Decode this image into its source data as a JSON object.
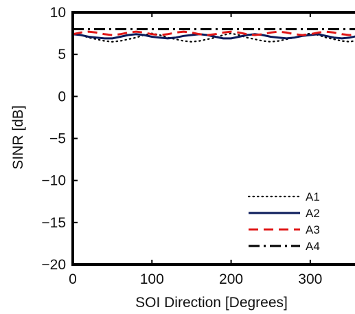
{
  "chart_data": {
    "type": "line",
    "title": "",
    "xlabel": "SOI Direction [Degrees]",
    "ylabel": "SINR [dB]",
    "xlim": [
      0,
      360
    ],
    "ylim": [
      -20,
      10
    ],
    "xticks": [
      0,
      100,
      200,
      300
    ],
    "yticks": [
      10,
      5,
      0,
      -5,
      -10,
      -15,
      -20
    ],
    "grid": false,
    "legend_position": "bottom-right",
    "series": [
      {
        "name": "A1",
        "color": "#000000",
        "style": "dotted",
        "x": [
          0,
          10,
          20,
          30,
          40,
          50,
          60,
          70,
          80,
          90,
          100,
          110,
          120,
          130,
          140,
          150,
          160,
          170,
          180,
          190,
          200,
          210,
          220,
          230,
          240,
          250,
          260,
          270,
          280,
          290,
          300,
          310,
          320,
          330,
          340,
          350,
          360
        ],
        "y": [
          7.5,
          7.3,
          7.0,
          6.8,
          6.6,
          6.5,
          6.6,
          6.8,
          7.0,
          7.3,
          7.5,
          7.3,
          7.0,
          6.8,
          6.6,
          6.5,
          6.6,
          6.8,
          7.0,
          7.3,
          7.5,
          7.3,
          7.0,
          6.8,
          6.6,
          6.5,
          6.6,
          6.8,
          7.0,
          7.3,
          7.5,
          7.3,
          7.0,
          6.8,
          6.6,
          6.5,
          6.7
        ]
      },
      {
        "name": "A2",
        "color": "#0a1a5a",
        "style": "solid",
        "x": [
          0,
          10,
          20,
          30,
          40,
          50,
          60,
          70,
          80,
          90,
          100,
          110,
          120,
          130,
          140,
          150,
          160,
          170,
          180,
          190,
          200,
          210,
          220,
          230,
          240,
          250,
          260,
          270,
          280,
          290,
          300,
          310,
          320,
          330,
          340,
          350,
          360
        ],
        "y": [
          7.4,
          7.3,
          7.1,
          7.0,
          6.9,
          6.9,
          7.1,
          7.3,
          7.4,
          7.3,
          7.1,
          7.0,
          6.9,
          7.0,
          7.2,
          7.3,
          7.4,
          7.3,
          7.1,
          6.9,
          6.9,
          7.1,
          7.3,
          7.4,
          7.3,
          7.1,
          7.0,
          6.9,
          7.0,
          7.2,
          7.3,
          7.4,
          7.2,
          7.0,
          6.9,
          7.0,
          7.2
        ]
      },
      {
        "name": "A3",
        "color": "#e01818",
        "style": "dashed",
        "x": [
          0,
          10,
          20,
          30,
          40,
          50,
          60,
          70,
          80,
          90,
          100,
          110,
          120,
          130,
          140,
          150,
          160,
          170,
          180,
          190,
          200,
          210,
          220,
          230,
          240,
          250,
          260,
          270,
          280,
          290,
          300,
          310,
          320,
          330,
          340,
          350,
          360
        ],
        "y": [
          7.4,
          7.6,
          7.7,
          7.6,
          7.4,
          7.3,
          7.4,
          7.6,
          7.7,
          7.6,
          7.4,
          7.3,
          7.4,
          7.6,
          7.7,
          7.6,
          7.4,
          7.3,
          7.4,
          7.6,
          7.7,
          7.6,
          7.4,
          7.3,
          7.4,
          7.6,
          7.7,
          7.6,
          7.4,
          7.3,
          7.4,
          7.6,
          7.7,
          7.6,
          7.4,
          7.3,
          7.4
        ]
      },
      {
        "name": "A4",
        "color": "#000000",
        "style": "dashdot",
        "x": [
          0,
          360
        ],
        "y": [
          8.0,
          8.0
        ]
      }
    ]
  }
}
